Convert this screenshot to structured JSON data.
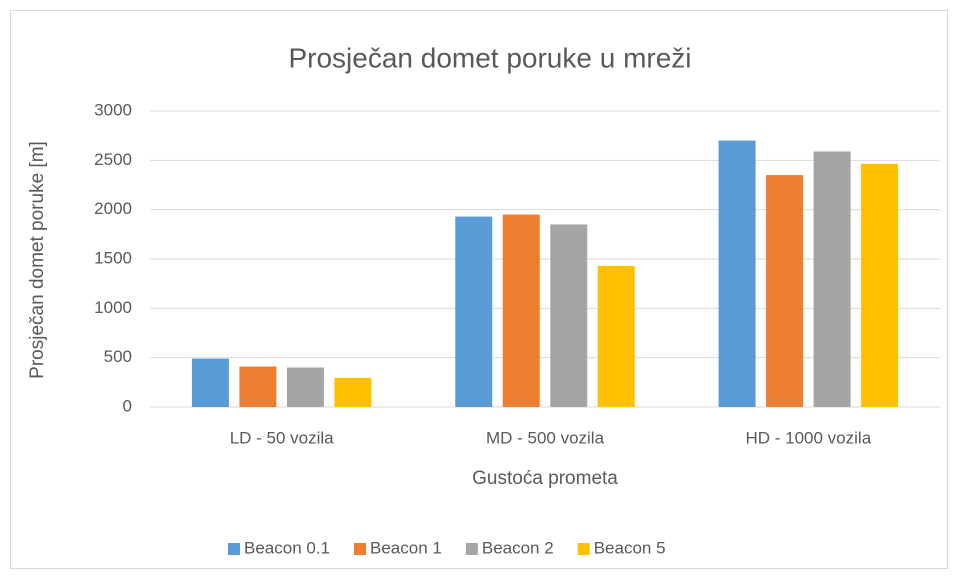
{
  "chart_data": {
    "type": "bar",
    "title": "Prosječan domet poruke u mreži",
    "x_label": "Gustoća prometa",
    "y_label": "Prosječan domet poruke [m]",
    "categories": [
      "LD - 50 vozila",
      "MD - 500 vozila",
      "HD - 1000 vozila"
    ],
    "series": [
      {
        "name": "Beacon 0.1",
        "color": "#5b9bd5",
        "values": [
          490,
          1930,
          2700
        ]
      },
      {
        "name": "Beacon 1",
        "color": "#ed7d31",
        "values": [
          410,
          1950,
          2350
        ]
      },
      {
        "name": "Beacon 2",
        "color": "#a5a5a5",
        "values": [
          400,
          1850,
          2590
        ]
      },
      {
        "name": "Beacon 5",
        "color": "#ffc000",
        "values": [
          295,
          1430,
          2465
        ]
      }
    ],
    "ylim": [
      0,
      3000
    ],
    "yticks": [
      0,
      500,
      1000,
      1500,
      2000,
      2500,
      3000
    ],
    "grid": true,
    "legend": "bottom"
  }
}
